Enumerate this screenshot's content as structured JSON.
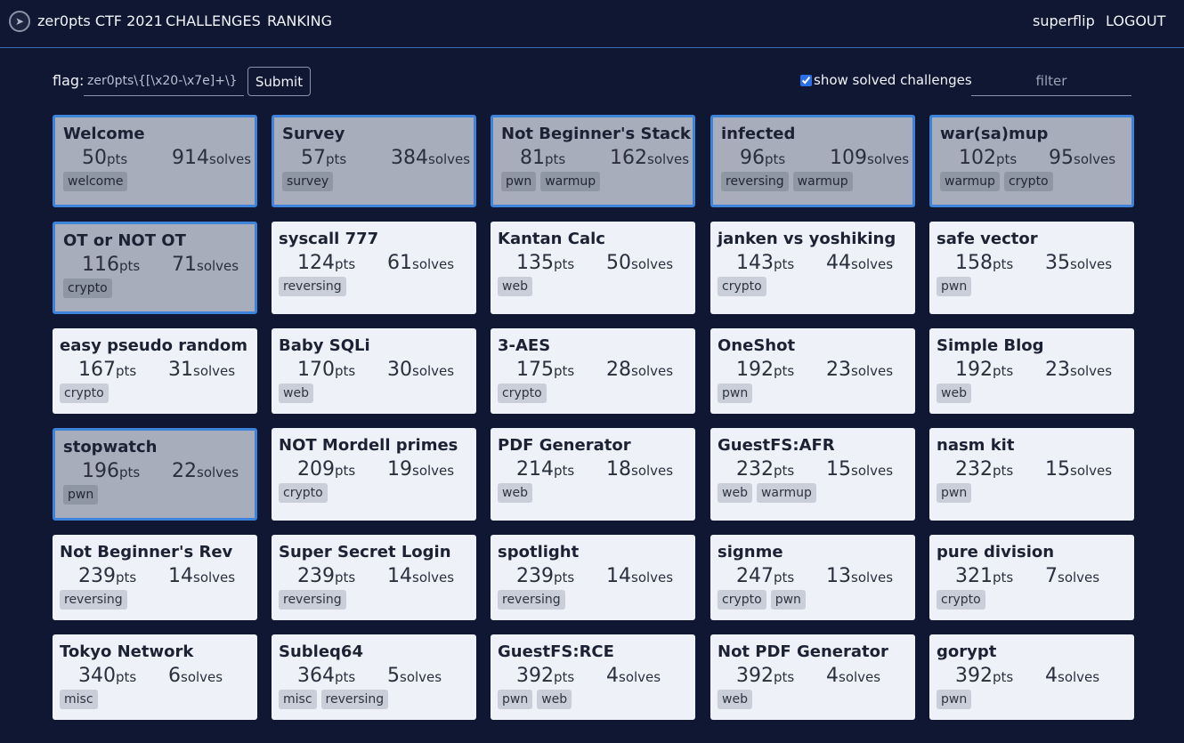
{
  "nav": {
    "logo_icon": "ctf-logo-icon",
    "title": "zer0pts CTF 2021",
    "challenges": "CHALLENGES",
    "ranking": "RANKING",
    "user": "superflip",
    "logout": "LOGOUT"
  },
  "flag": {
    "label": "flag:",
    "placeholder": "zer0pts\\{[\\x20-\\x7e]+\\}",
    "submit": "Submit"
  },
  "filters": {
    "show_solved_label": "show solved challenges",
    "show_solved_checked": true,
    "filter_placeholder": "filter"
  },
  "colors": {
    "background": "#0f1733",
    "solved_border": "#3f82da",
    "card": "#eef1f7",
    "solved_card": "#a7adba"
  },
  "challenges": [
    {
      "name": "Welcome",
      "pts": "50",
      "solves": "914",
      "tags": [
        "welcome"
      ],
      "solved": true
    },
    {
      "name": "Survey",
      "pts": "57",
      "solves": "384",
      "tags": [
        "survey"
      ],
      "solved": true
    },
    {
      "name": "Not Beginner's Stack",
      "pts": "81",
      "solves": "162",
      "tags": [
        "pwn",
        "warmup"
      ],
      "solved": true
    },
    {
      "name": "infected",
      "pts": "96",
      "solves": "109",
      "tags": [
        "reversing",
        "warmup"
      ],
      "solved": true
    },
    {
      "name": "war(sa)mup",
      "pts": "102",
      "solves": "95",
      "tags": [
        "warmup",
        "crypto"
      ],
      "solved": true
    },
    {
      "name": "OT or NOT OT",
      "pts": "116",
      "solves": "71",
      "tags": [
        "crypto"
      ],
      "solved": true
    },
    {
      "name": "syscall 777",
      "pts": "124",
      "solves": "61",
      "tags": [
        "reversing"
      ],
      "solved": false
    },
    {
      "name": "Kantan Calc",
      "pts": "135",
      "solves": "50",
      "tags": [
        "web"
      ],
      "solved": false
    },
    {
      "name": "janken vs yoshiking",
      "pts": "143",
      "solves": "44",
      "tags": [
        "crypto"
      ],
      "solved": false
    },
    {
      "name": "safe vector",
      "pts": "158",
      "solves": "35",
      "tags": [
        "pwn"
      ],
      "solved": false
    },
    {
      "name": "easy pseudo random",
      "pts": "167",
      "solves": "31",
      "tags": [
        "crypto"
      ],
      "solved": false
    },
    {
      "name": "Baby SQLi",
      "pts": "170",
      "solves": "30",
      "tags": [
        "web"
      ],
      "solved": false
    },
    {
      "name": "3-AES",
      "pts": "175",
      "solves": "28",
      "tags": [
        "crypto"
      ],
      "solved": false
    },
    {
      "name": "OneShot",
      "pts": "192",
      "solves": "23",
      "tags": [
        "pwn"
      ],
      "solved": false
    },
    {
      "name": "Simple Blog",
      "pts": "192",
      "solves": "23",
      "tags": [
        "web"
      ],
      "solved": false
    },
    {
      "name": "stopwatch",
      "pts": "196",
      "solves": "22",
      "tags": [
        "pwn"
      ],
      "solved": true
    },
    {
      "name": "NOT Mordell primes",
      "pts": "209",
      "solves": "19",
      "tags": [
        "crypto"
      ],
      "solved": false
    },
    {
      "name": "PDF Generator",
      "pts": "214",
      "solves": "18",
      "tags": [
        "web"
      ],
      "solved": false
    },
    {
      "name": "GuestFS:AFR",
      "pts": "232",
      "solves": "15",
      "tags": [
        "web",
        "warmup"
      ],
      "solved": false
    },
    {
      "name": "nasm kit",
      "pts": "232",
      "solves": "15",
      "tags": [
        "pwn"
      ],
      "solved": false
    },
    {
      "name": "Not Beginner's Rev",
      "pts": "239",
      "solves": "14",
      "tags": [
        "reversing"
      ],
      "solved": false
    },
    {
      "name": "Super Secret Login",
      "pts": "239",
      "solves": "14",
      "tags": [
        "reversing"
      ],
      "solved": false
    },
    {
      "name": "spotlight",
      "pts": "239",
      "solves": "14",
      "tags": [
        "reversing"
      ],
      "solved": false
    },
    {
      "name": "signme",
      "pts": "247",
      "solves": "13",
      "tags": [
        "crypto",
        "pwn"
      ],
      "solved": false
    },
    {
      "name": "pure division",
      "pts": "321",
      "solves": "7",
      "tags": [
        "crypto"
      ],
      "solved": false
    },
    {
      "name": "Tokyo Network",
      "pts": "340",
      "solves": "6",
      "tags": [
        "misc"
      ],
      "solved": false
    },
    {
      "name": "Subleq64",
      "pts": "364",
      "solves": "5",
      "tags": [
        "misc",
        "reversing"
      ],
      "solved": false
    },
    {
      "name": "GuestFS:RCE",
      "pts": "392",
      "solves": "4",
      "tags": [
        "pwn",
        "web"
      ],
      "solved": false
    },
    {
      "name": "Not PDF Generator",
      "pts": "392",
      "solves": "4",
      "tags": [
        "web"
      ],
      "solved": false
    },
    {
      "name": "gorypt",
      "pts": "392",
      "solves": "4",
      "tags": [
        "pwn"
      ],
      "solved": false
    }
  ]
}
